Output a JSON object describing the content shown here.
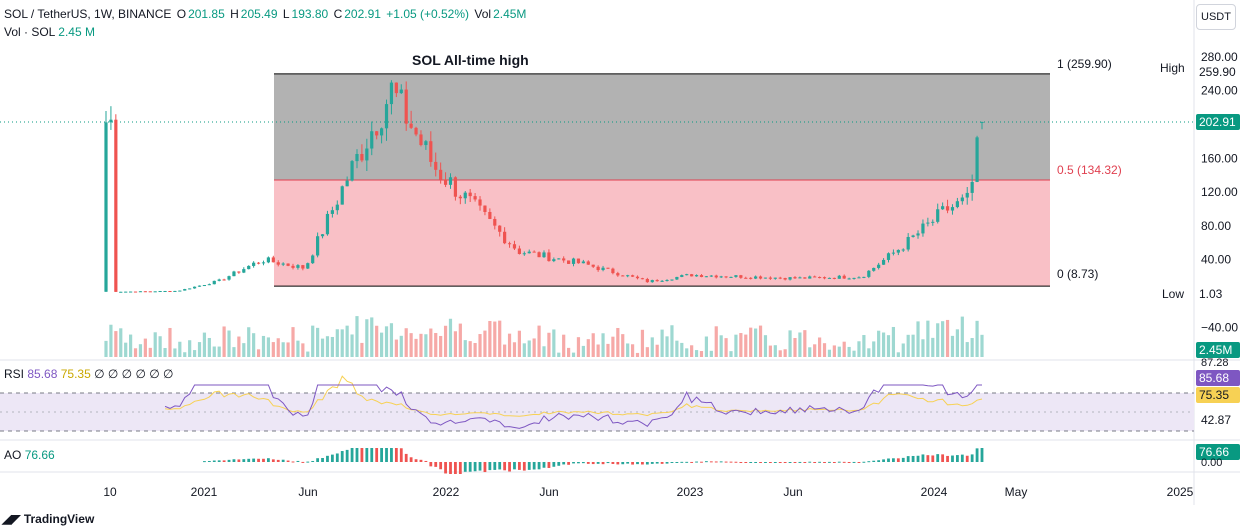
{
  "header": {
    "symbol": "SOL / TetherUS, 1W, BINANCE",
    "o_label": "O",
    "o_value": "201.85",
    "h_label": "H",
    "h_value": "205.49",
    "l_label": "L",
    "l_value": "193.80",
    "c_label": "C",
    "c_value": "202.91",
    "change": "+1.05 (+0.52%)",
    "vol_label": "Vol",
    "vol_value": "2.45M",
    "sub_label": "Vol · SOL",
    "sub_value": "2.45 M",
    "currency": "USDT"
  },
  "annotation": {
    "title": "SOL All-time high"
  },
  "fib": {
    "levels": [
      {
        "label": "1 (259.90)",
        "value": 259.9
      },
      {
        "label": "0.5 (134.32)",
        "value": 134.32
      },
      {
        "label": "0 (8.73)",
        "value": 8.73
      }
    ]
  },
  "price_tags": {
    "high_label": "High",
    "high_value": "259.90",
    "last_value": "202.91",
    "low_label": "Low",
    "low_value": "1.03",
    "vol_value": "2.45M"
  },
  "rsi": {
    "label": "RSI",
    "v1": "85.68",
    "v2": "75.35",
    "extra": "∅ ∅ ∅ ∅ ∅ ∅",
    "tag1": "85.68",
    "tag2": "75.35",
    "lvl_top": "87.28",
    "lvl_mid": "42.87"
  },
  "ao": {
    "label": "AO",
    "value": "76.66",
    "tag": "76.66",
    "zero": "0.00"
  },
  "branding": {
    "name": "TradingView"
  },
  "colors": {
    "up": "#26a69a",
    "down": "#ef5350",
    "green_text": "#089981",
    "rsi_line": "#7e57c2",
    "rsi_ma": "#f7d154"
  },
  "chart_data": {
    "type": "candlestick",
    "title": "SOL / TetherUS, 1W, BINANCE",
    "y_ticks": [
      280,
      240,
      200,
      160,
      120,
      80,
      40,
      -40
    ],
    "y_tick_labels": [
      "280.00",
      "240.00",
      "200.00",
      "160.00",
      "120.00",
      "80.00",
      "40.00",
      "−40.00"
    ],
    "x_ticks": [
      "10",
      "2021",
      "Jun",
      "2022",
      "Jun",
      "2023",
      "Jun",
      "2024",
      "May",
      "2025"
    ],
    "ylim": [
      -40,
      290
    ],
    "approx_weekly_close": [
      {
        "date": "2020-10",
        "close": 2
      },
      {
        "date": "2021-01",
        "close": 3
      },
      {
        "date": "2021-03",
        "close": 15
      },
      {
        "date": "2021-05",
        "close": 40
      },
      {
        "date": "2021-07",
        "close": 30
      },
      {
        "date": "2021-09",
        "close": 140
      },
      {
        "date": "2021-11",
        "close": 240
      },
      {
        "date": "2022-01",
        "close": 150
      },
      {
        "date": "2022-03",
        "close": 100
      },
      {
        "date": "2022-05",
        "close": 50
      },
      {
        "date": "2022-08",
        "close": 35
      },
      {
        "date": "2022-11",
        "close": 14
      },
      {
        "date": "2023-01",
        "close": 22
      },
      {
        "date": "2023-06",
        "close": 18
      },
      {
        "date": "2023-09",
        "close": 20
      },
      {
        "date": "2023-11",
        "close": 58
      },
      {
        "date": "2024-01",
        "close": 100
      },
      {
        "date": "2024-02",
        "close": 110
      },
      {
        "date": "2024-03",
        "close": 202.91
      }
    ]
  }
}
